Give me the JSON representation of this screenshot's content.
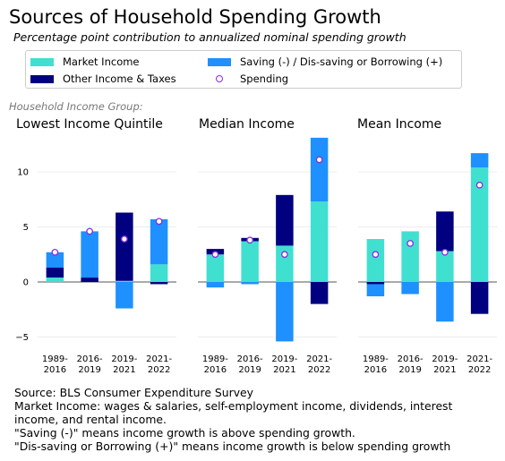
{
  "title": "Sources of Household Spending Growth",
  "subtitle": "Percentage point contribution to annualized nominal spending growth",
  "legend": {
    "market_income": "Market Income",
    "other_income": "Other Income & Taxes",
    "saving": "Saving (-) / Dis-saving or Borrowing (+)",
    "spending": "Spending"
  },
  "group_label": "Household Income Group:",
  "colors": {
    "market_income": "#40e0d0",
    "other_income": "#000080",
    "saving": "#1e90ff",
    "spending_edge": "#8a2be2"
  },
  "chart_data": {
    "type": "bar",
    "stacked": true,
    "categories": [
      "1989-\n2016",
      "2016-\n2019",
      "2019-\n2021",
      "2021-\n2022"
    ],
    "ylim": [
      -6,
      13
    ],
    "yticks": [
      -5,
      0,
      5,
      10
    ],
    "grid": true,
    "legend_position": "top",
    "panels": [
      {
        "title": "Lowest Income Quintile",
        "series": [
          {
            "name": "Market Income",
            "values": [
              0.4,
              0.0,
              0.1,
              1.6
            ]
          },
          {
            "name": "Other Income & Taxes",
            "values": [
              0.9,
              0.4,
              6.2,
              -0.2
            ]
          },
          {
            "name": "Saving (-) / Dis-saving or Borrowing (+)",
            "values": [
              1.4,
              4.2,
              -2.4,
              4.1
            ]
          }
        ],
        "spending": [
          2.7,
          4.6,
          3.9,
          5.5
        ]
      },
      {
        "title": "Median Income",
        "series": [
          {
            "name": "Market Income",
            "values": [
              2.5,
              3.7,
              3.3,
              7.3
            ]
          },
          {
            "name": "Other Income & Taxes",
            "values": [
              0.5,
              0.3,
              4.6,
              -2.0
            ]
          },
          {
            "name": "Saving (-) / Dis-saving or Borrowing (+)",
            "values": [
              -0.5,
              -0.2,
              -5.4,
              5.8
            ]
          }
        ],
        "spending": [
          2.5,
          3.8,
          2.5,
          11.1
        ]
      },
      {
        "title": "Mean Income",
        "series": [
          {
            "name": "Market Income",
            "values": [
              3.9,
              4.6,
              2.8,
              10.4
            ]
          },
          {
            "name": "Other Income & Taxes",
            "values": [
              -0.2,
              0.0,
              3.6,
              -2.9
            ]
          },
          {
            "name": "Saving (-) / Dis-saving or Borrowing (+)",
            "values": [
              -1.1,
              -1.1,
              -3.6,
              1.3
            ]
          }
        ],
        "spending": [
          2.5,
          3.5,
          2.7,
          8.8
        ]
      }
    ]
  },
  "notes": [
    "Source: BLS Consumer Expenditure Survey",
    "Market Income: wages & salaries, self-employment income, dividends, interest",
    "income, and rental income.",
    "\"Saving (-)\" means income growth is above spending growth.",
    "\"Dis-saving or Borrowing (+)\" means income growth is below spending growth"
  ]
}
